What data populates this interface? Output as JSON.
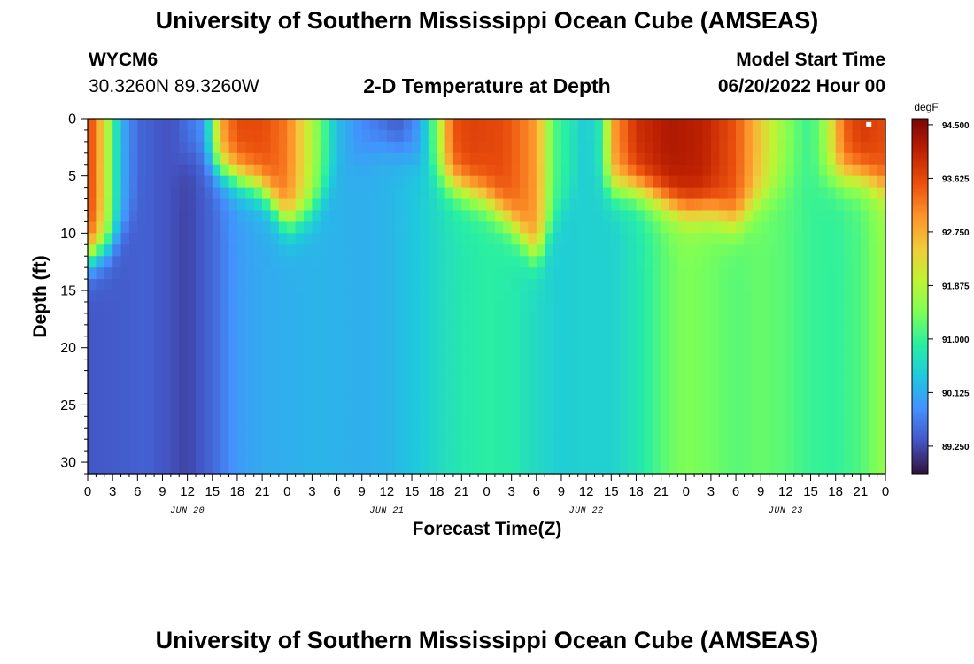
{
  "page": {
    "title": "University of Southern Mississippi Ocean Cube (AMSEAS)",
    "footer_title": "University of Southern Mississippi Ocean Cube (AMSEAS)",
    "station_id": "WYCM6",
    "station_coords": "30.3260N  89.3260W",
    "plot_title": "2-D Temperature at Depth",
    "model_start_label": "Model Start Time",
    "model_start_value": "06/20/2022 Hour 00"
  },
  "chart_data": {
    "type": "heatmap",
    "title": "2-D Temperature at Depth",
    "xlabel": "Forecast Time(Z)",
    "ylabel": "Depth (ft)",
    "x_range_hours": [
      0,
      96
    ],
    "x_ticks": [
      "0",
      "3",
      "6",
      "9",
      "12",
      "15",
      "18",
      "21",
      "0",
      "3",
      "6",
      "9",
      "12",
      "15",
      "18",
      "21",
      "0",
      "3",
      "6",
      "9",
      "12",
      "15",
      "18",
      "21",
      "0",
      "3",
      "6",
      "9",
      "12",
      "15",
      "18",
      "21",
      "0"
    ],
    "day_labels": [
      {
        "label": "JUN 20",
        "hour": 12
      },
      {
        "label": "JUN 21",
        "hour": 36
      },
      {
        "label": "JUN 22",
        "hour": 60
      },
      {
        "label": "JUN 23",
        "hour": 84
      }
    ],
    "y_range_ft": [
      0,
      31
    ],
    "y_ticks": [
      0,
      5,
      10,
      15,
      20,
      25,
      30
    ],
    "y_inverted": true,
    "colorbar": {
      "units": "degF",
      "min": 88.8,
      "max": 94.6,
      "labels": [
        "94.500",
        "93.625",
        "92.750",
        "91.875",
        "91.000",
        "90.125",
        "89.250"
      ],
      "colors": [
        "#30123b",
        "#4454c4",
        "#4490fe",
        "#1fc8de",
        "#29efa2",
        "#7dff56",
        "#c1f334",
        "#f1ca3a",
        "#fe922a",
        "#ea4f0d",
        "#be2102",
        "#7a0403"
      ]
    },
    "deep_profile": {
      "hours": [
        0,
        4,
        7,
        12,
        15,
        18,
        21,
        24,
        28,
        33,
        36,
        39,
        42,
        45,
        48,
        51,
        54,
        57,
        60,
        63,
        66,
        70,
        72,
        75,
        78,
        81,
        84,
        87,
        90,
        93,
        96
      ],
      "temps_degF": [
        89.35,
        89.4,
        89.45,
        89.2,
        89.5,
        89.95,
        90.1,
        90.15,
        90.2,
        90.15,
        90.2,
        90.35,
        90.6,
        90.8,
        90.9,
        90.85,
        90.6,
        90.45,
        90.5,
        90.5,
        90.75,
        91.3,
        91.45,
        91.35,
        91.2,
        91.3,
        91.2,
        91.0,
        90.95,
        91.15,
        91.65
      ]
    },
    "surface_profile": {
      "hours": [
        0,
        2,
        4,
        6,
        10,
        14,
        16,
        18,
        21,
        24,
        27,
        30,
        33,
        35,
        37,
        38,
        40,
        42,
        44,
        46,
        50,
        52,
        54,
        56,
        60,
        62,
        63,
        66,
        70,
        74,
        78,
        82,
        85,
        87,
        89,
        91,
        93,
        96
      ],
      "temps_degF": [
        93.8,
        92.3,
        90.2,
        89.5,
        89.3,
        89.9,
        92.8,
        93.6,
        93.6,
        93.2,
        91.8,
        90.3,
        89.8,
        89.6,
        89.3,
        89.5,
        90.0,
        91.5,
        93.5,
        93.7,
        93.6,
        93.3,
        92.9,
        91.2,
        90.4,
        90.9,
        92.8,
        93.9,
        94.2,
        94.1,
        93.5,
        92.1,
        91.3,
        91.0,
        91.8,
        93.4,
        93.8,
        93.6
      ]
    },
    "mixed_layer_depth_ft": {
      "hours": [
        0,
        3,
        6,
        12,
        15,
        18,
        21,
        24,
        27,
        30,
        33,
        36,
        39,
        42,
        45,
        48,
        51,
        54,
        57,
        60,
        63,
        66,
        69,
        72,
        75,
        78,
        81,
        84,
        87,
        90,
        93,
        96
      ],
      "depth_ft": [
        12,
        11,
        8,
        3,
        4,
        5,
        6,
        9,
        8,
        5,
        3,
        2,
        3,
        5,
        6,
        7,
        9,
        12,
        8,
        5,
        6,
        6,
        7,
        8,
        8,
        9,
        7,
        6,
        5,
        5,
        5,
        6
      ]
    },
    "annotations": [
      {
        "shape": "marker",
        "color": "#ffffff",
        "hour": 94,
        "depth_ft": 0.3
      }
    ]
  }
}
